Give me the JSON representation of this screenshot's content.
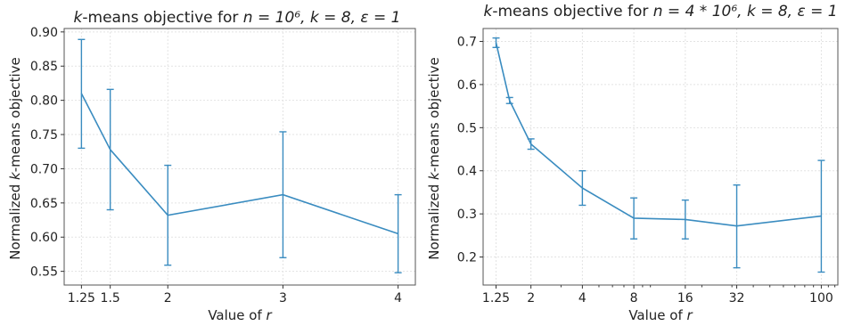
{
  "chart_data": [
    {
      "type": "line",
      "title_prefix": "k",
      "title_main": "-means objective for ",
      "title_math": "n = 10⁶, k = 8, ε = 1",
      "xlabel_prefix": "Value of ",
      "xlabel_var": "r",
      "ylabel_prefix": "Normalized ",
      "ylabel_var": "k",
      "ylabel_suffix": "-means objective",
      "x_scale": "linear",
      "xlim": [
        1.1,
        4.15
      ],
      "ylim": [
        0.53,
        0.905
      ],
      "x": [
        1.25,
        1.5,
        2,
        3,
        4
      ],
      "x_tick_labels": [
        "1.25",
        "1.5",
        "2",
        "3",
        "4"
      ],
      "y_ticks": [
        0.55,
        0.6,
        0.65,
        0.7,
        0.75,
        0.8,
        0.85,
        0.9
      ],
      "y_tick_labels": [
        "0.55",
        "0.60",
        "0.65",
        "0.70",
        "0.75",
        "0.80",
        "0.85",
        "0.90"
      ],
      "series": [
        {
          "values": [
            0.81,
            0.728,
            0.632,
            0.662,
            0.605
          ],
          "err_low": [
            0.73,
            0.64,
            0.559,
            0.57,
            0.548
          ],
          "err_high": [
            0.889,
            0.816,
            0.705,
            0.754,
            0.662
          ],
          "color": "#3a8cc0"
        }
      ],
      "grid": true
    },
    {
      "type": "line",
      "title_prefix": "k",
      "title_main": "-means objective for ",
      "title_math": "n = 4 * 10⁶, k = 8, ε = 1",
      "xlabel_prefix": "Value of ",
      "xlabel_var": "r",
      "ylabel_prefix": "Normalized ",
      "ylabel_var": "k",
      "ylabel_suffix": "-means objective",
      "x_scale": "log",
      "xlim": [
        1.05,
        125
      ],
      "ylim": [
        0.135,
        0.73
      ],
      "x": [
        1.25,
        1.5,
        2,
        4,
        8,
        16,
        32,
        100
      ],
      "x_tick_labels": [
        "1.25",
        "2",
        "4",
        "8",
        "16",
        "32",
        "100"
      ],
      "x_tick_values": [
        1.25,
        2,
        4,
        8,
        16,
        32,
        100
      ],
      "y_ticks": [
        0.2,
        0.3,
        0.4,
        0.5,
        0.6,
        0.7
      ],
      "y_tick_labels": [
        "0.2",
        "0.3",
        "0.4",
        "0.5",
        "0.6",
        "0.7"
      ],
      "series": [
        {
          "values": [
            0.697,
            0.563,
            0.462,
            0.36,
            0.29,
            0.287,
            0.272,
            0.295
          ],
          "err_low": [
            0.686,
            0.556,
            0.45,
            0.32,
            0.242,
            0.242,
            0.175,
            0.165
          ],
          "err_high": [
            0.708,
            0.57,
            0.474,
            0.4,
            0.337,
            0.332,
            0.367,
            0.424
          ],
          "color": "#3a8cc0"
        }
      ],
      "grid": true
    }
  ]
}
